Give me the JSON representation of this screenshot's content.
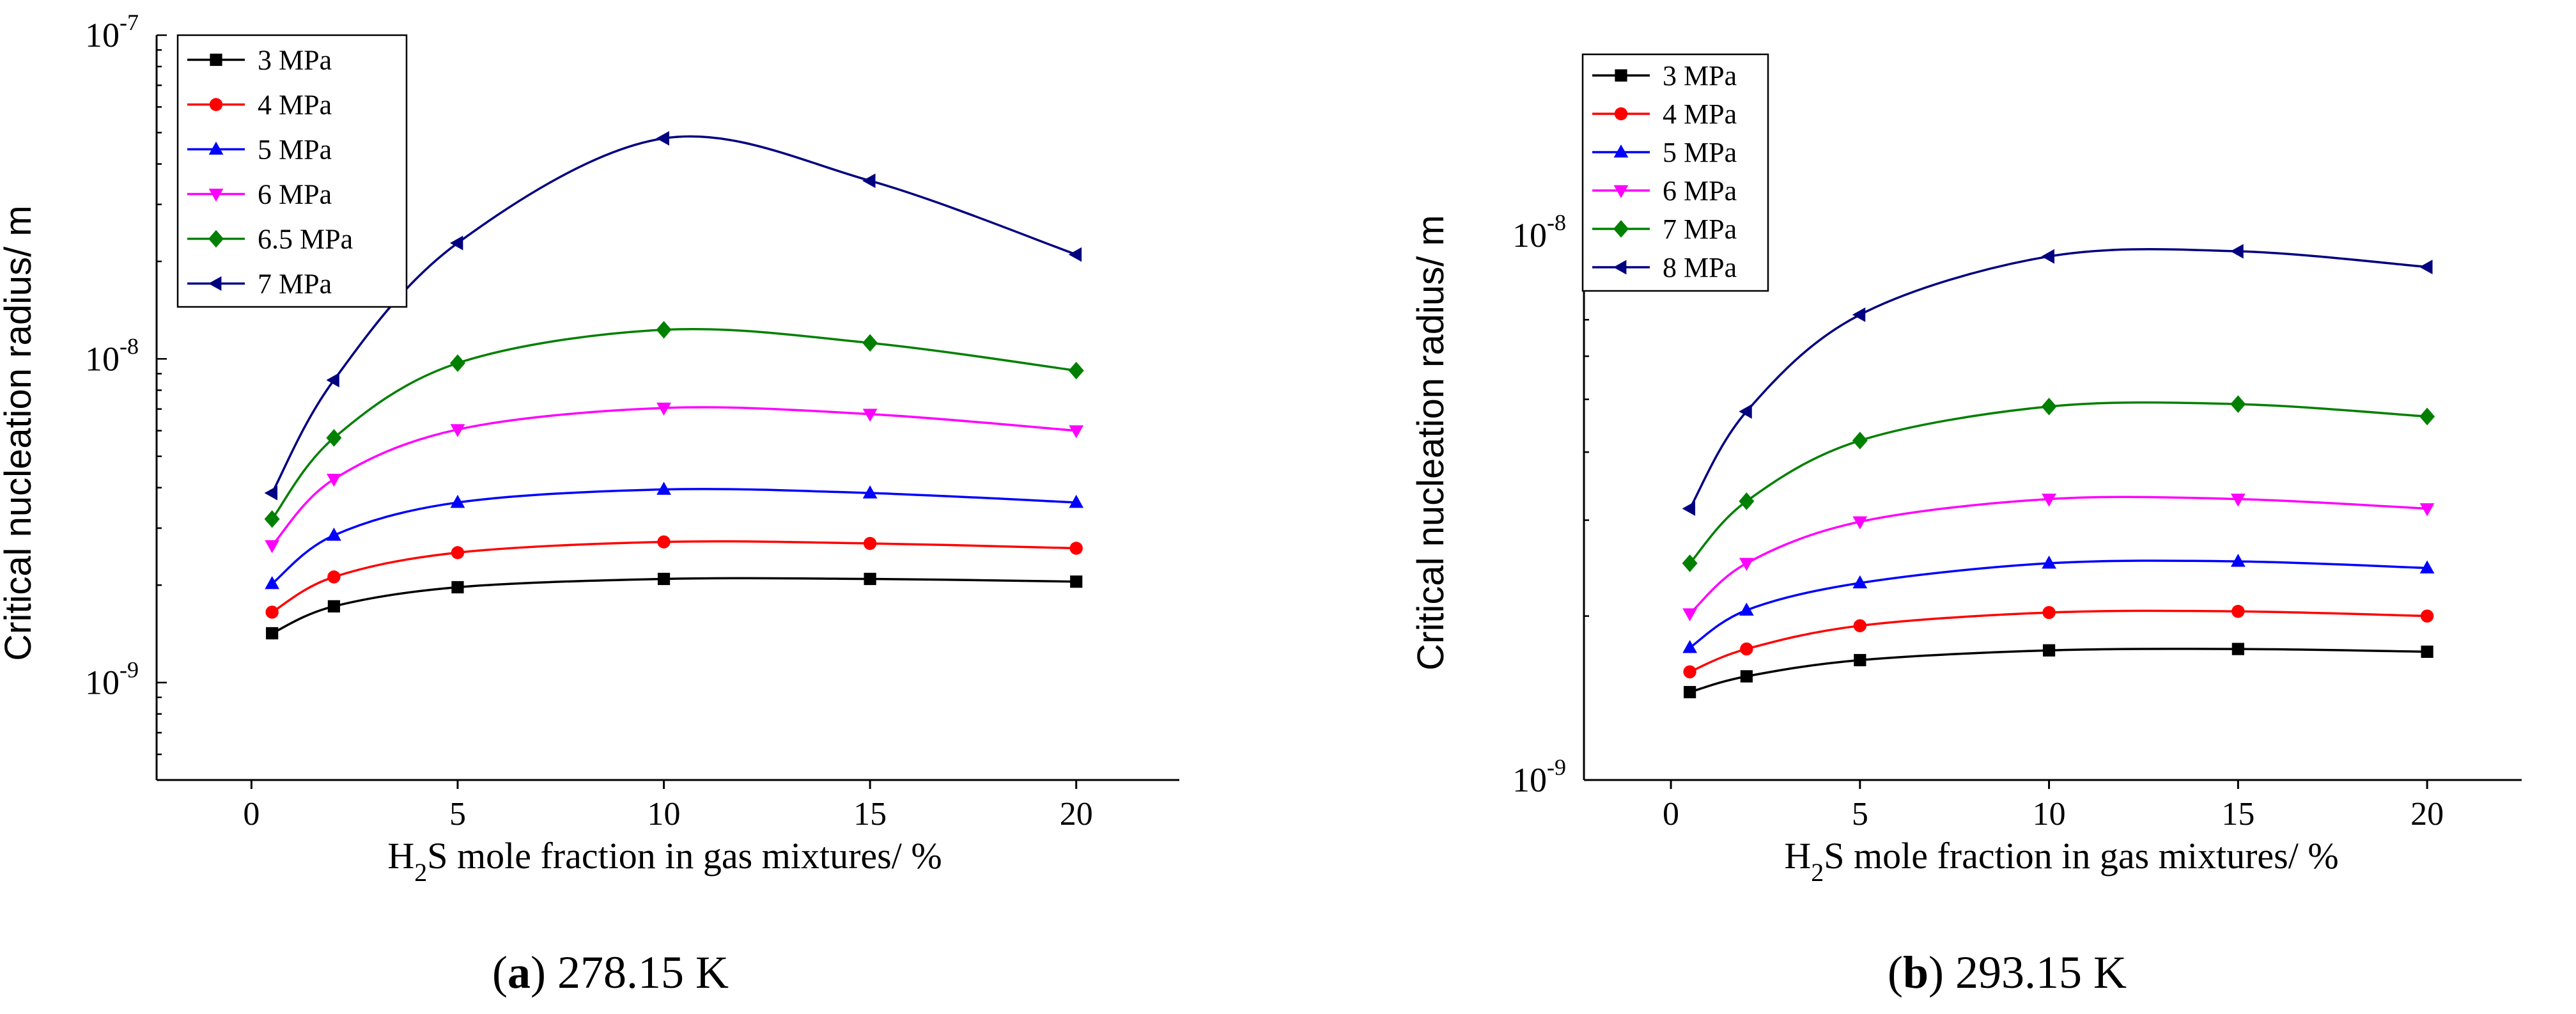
{
  "chart_data": [
    {
      "type": "line",
      "yscale": "log",
      "ylim": [
        5e-10,
        1e-07
      ],
      "xlim": [
        -2.3,
        22.5
      ],
      "x": [
        0.5,
        2,
        5,
        10,
        15,
        20
      ],
      "xticks": [
        "0",
        "5",
        "10",
        "15",
        "20"
      ],
      "xtick_values": [
        0,
        5,
        10,
        15,
        20
      ],
      "yticks": [
        {
          "base": "10",
          "exp": "-9",
          "value": 1e-09
        },
        {
          "base": "10",
          "exp": "-8",
          "value": 1e-08
        },
        {
          "base": "10",
          "exp": "-7",
          "value": 1e-07
        }
      ],
      "ylabel": "Critical nucleation radius/ m",
      "xlabel": {
        "pre": "H",
        "sub": "2",
        "post": "S mole fraction in gas mixtures/ %"
      },
      "caption": {
        "letter": "a",
        "text": " 278.15 K"
      },
      "series": [
        {
          "name": "3 MPa",
          "color": "#000000",
          "marker": "square",
          "values": [
            1.42e-09,
            1.72e-09,
            1.97e-09,
            2.09e-09,
            2.09e-09,
            2.05e-09
          ]
        },
        {
          "name": "4 MPa",
          "color": "#ff0000",
          "marker": "circle",
          "values": [
            1.65e-09,
            2.12e-09,
            2.52e-09,
            2.72e-09,
            2.69e-09,
            2.6e-09
          ]
        },
        {
          "name": "5 MPa",
          "color": "#0000ff",
          "marker": "triangle-up",
          "values": [
            2.02e-09,
            2.85e-09,
            3.6e-09,
            3.95e-09,
            3.85e-09,
            3.6e-09
          ]
        },
        {
          "name": "6 MPa",
          "color": "#ff00ff",
          "marker": "triangle-down",
          "values": [
            2.65e-09,
            4.25e-09,
            6.05e-09,
            7.05e-09,
            6.75e-09,
            6e-09
          ]
        },
        {
          "name": "6.5 MPa",
          "color": "#008000",
          "marker": "diamond",
          "values": [
            3.2e-09,
            5.7e-09,
            9.7e-09,
            1.23e-08,
            1.12e-08,
            9.2e-09
          ]
        },
        {
          "name": "7 MPa",
          "color": "#000080",
          "marker": "triangle-left",
          "values": [
            3.85e-09,
            8.6e-09,
            2.28e-08,
            4.8e-08,
            3.55e-08,
            2.1e-08
          ]
        }
      ]
    },
    {
      "type": "line",
      "yscale": "log",
      "ylim": [
        1e-09,
        2.15e-08
      ],
      "xlim": [
        -2.3,
        22.5
      ],
      "x": [
        0.5,
        2,
        5,
        10,
        15,
        20
      ],
      "xticks": [
        "0",
        "5",
        "10",
        "15",
        "20"
      ],
      "xtick_values": [
        0,
        5,
        10,
        15,
        20
      ],
      "yticks": [
        {
          "base": "10",
          "exp": "-9",
          "value": 1e-09
        },
        {
          "base": "10",
          "exp": "-8",
          "value": 1e-08
        }
      ],
      "ylabel": "Critical nucleation radius/ m",
      "xlabel": {
        "pre": "H",
        "sub": "2",
        "post": "S mole fraction in gas mixtures/ %"
      },
      "caption": {
        "letter": "b",
        "text": " 293.15 K"
      },
      "series": [
        {
          "name": "3 MPa",
          "color": "#000000",
          "marker": "square",
          "values": [
            1.45e-09,
            1.55e-09,
            1.66e-09,
            1.73e-09,
            1.74e-09,
            1.72e-09
          ]
        },
        {
          "name": "4 MPa",
          "color": "#ff0000",
          "marker": "circle",
          "values": [
            1.58e-09,
            1.74e-09,
            1.92e-09,
            2.03e-09,
            2.04e-09,
            2e-09
          ]
        },
        {
          "name": "5 MPa",
          "color": "#0000ff",
          "marker": "triangle-up",
          "values": [
            1.75e-09,
            2.05e-09,
            2.3e-09,
            2.5e-09,
            2.52e-09,
            2.45e-09
          ]
        },
        {
          "name": "6 MPa",
          "color": "#ff00ff",
          "marker": "triangle-down",
          "values": [
            2.02e-09,
            2.5e-09,
            2.98e-09,
            3.28e-09,
            3.28e-09,
            3.15e-09
          ]
        },
        {
          "name": "7 MPa",
          "color": "#008000",
          "marker": "diamond",
          "values": [
            2.5e-09,
            3.25e-09,
            4.2e-09,
            4.85e-09,
            4.9e-09,
            4.65e-09
          ]
        },
        {
          "name": "8 MPa",
          "color": "#000080",
          "marker": "triangle-left",
          "values": [
            3.15e-09,
            4.75e-09,
            7.15e-09,
            9.15e-09,
            9.35e-09,
            8.75e-09
          ]
        }
      ]
    }
  ]
}
